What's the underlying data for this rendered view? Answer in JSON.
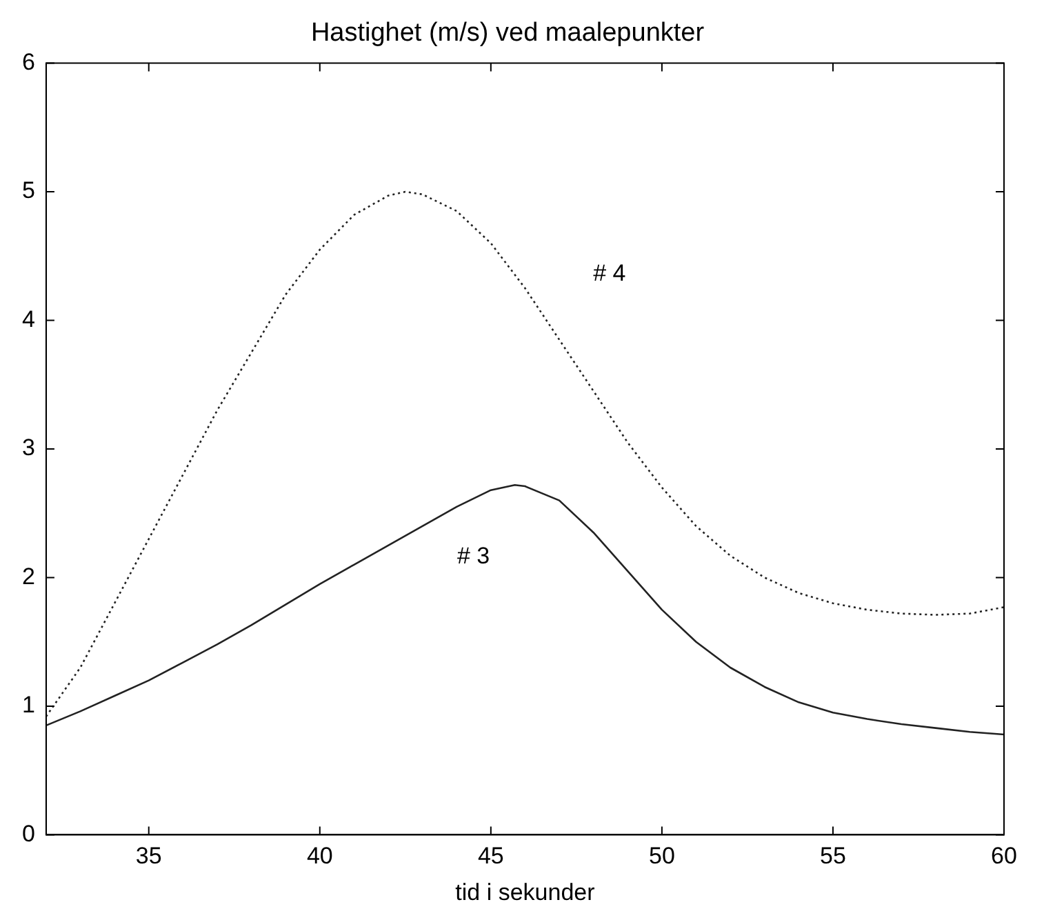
{
  "chart_data": {
    "type": "line",
    "title": "Hastighet (m/s) ved maalepunkter",
    "xlabel": "tid i sekunder",
    "xlim": [
      32,
      60
    ],
    "xticks": [
      35,
      40,
      45,
      50,
      55,
      60
    ],
    "ylim": [
      0,
      6
    ],
    "yticks": [
      0,
      1,
      2,
      3,
      4,
      5,
      6
    ],
    "grid": false,
    "legend": false,
    "marker": "none",
    "series": [
      {
        "name": "# 3",
        "color": "#222222",
        "line_style": "solid",
        "x": [
          32,
          33,
          34,
          35,
          36,
          37,
          38,
          39,
          40,
          41,
          42,
          43,
          44,
          45,
          45.7,
          46,
          47,
          48,
          49,
          50,
          51,
          52,
          53,
          54,
          55,
          56,
          57,
          58,
          59,
          60
        ],
        "values": [
          0.85,
          0.96,
          1.08,
          1.2,
          1.34,
          1.48,
          1.63,
          1.79,
          1.95,
          2.1,
          2.25,
          2.4,
          2.55,
          2.68,
          2.72,
          2.71,
          2.6,
          2.35,
          2.05,
          1.75,
          1.5,
          1.3,
          1.15,
          1.03,
          0.95,
          0.9,
          0.86,
          0.83,
          0.8,
          0.78
        ]
      },
      {
        "name": "# 4",
        "color": "#222222",
        "line_style": "dotted",
        "x": [
          32,
          33,
          34,
          35,
          36,
          37,
          38,
          39,
          40,
          41,
          42,
          42.5,
          43,
          44,
          45,
          46,
          47,
          48,
          49,
          50,
          51,
          52,
          53,
          54,
          55,
          56,
          57,
          58,
          59,
          60
        ],
        "values": [
          0.92,
          1.3,
          1.8,
          2.3,
          2.8,
          3.3,
          3.75,
          4.2,
          4.55,
          4.82,
          4.97,
          5.0,
          4.98,
          4.85,
          4.6,
          4.25,
          3.85,
          3.45,
          3.05,
          2.7,
          2.4,
          2.17,
          2.0,
          1.88,
          1.8,
          1.75,
          1.72,
          1.71,
          1.72,
          1.77
        ]
      }
    ]
  }
}
